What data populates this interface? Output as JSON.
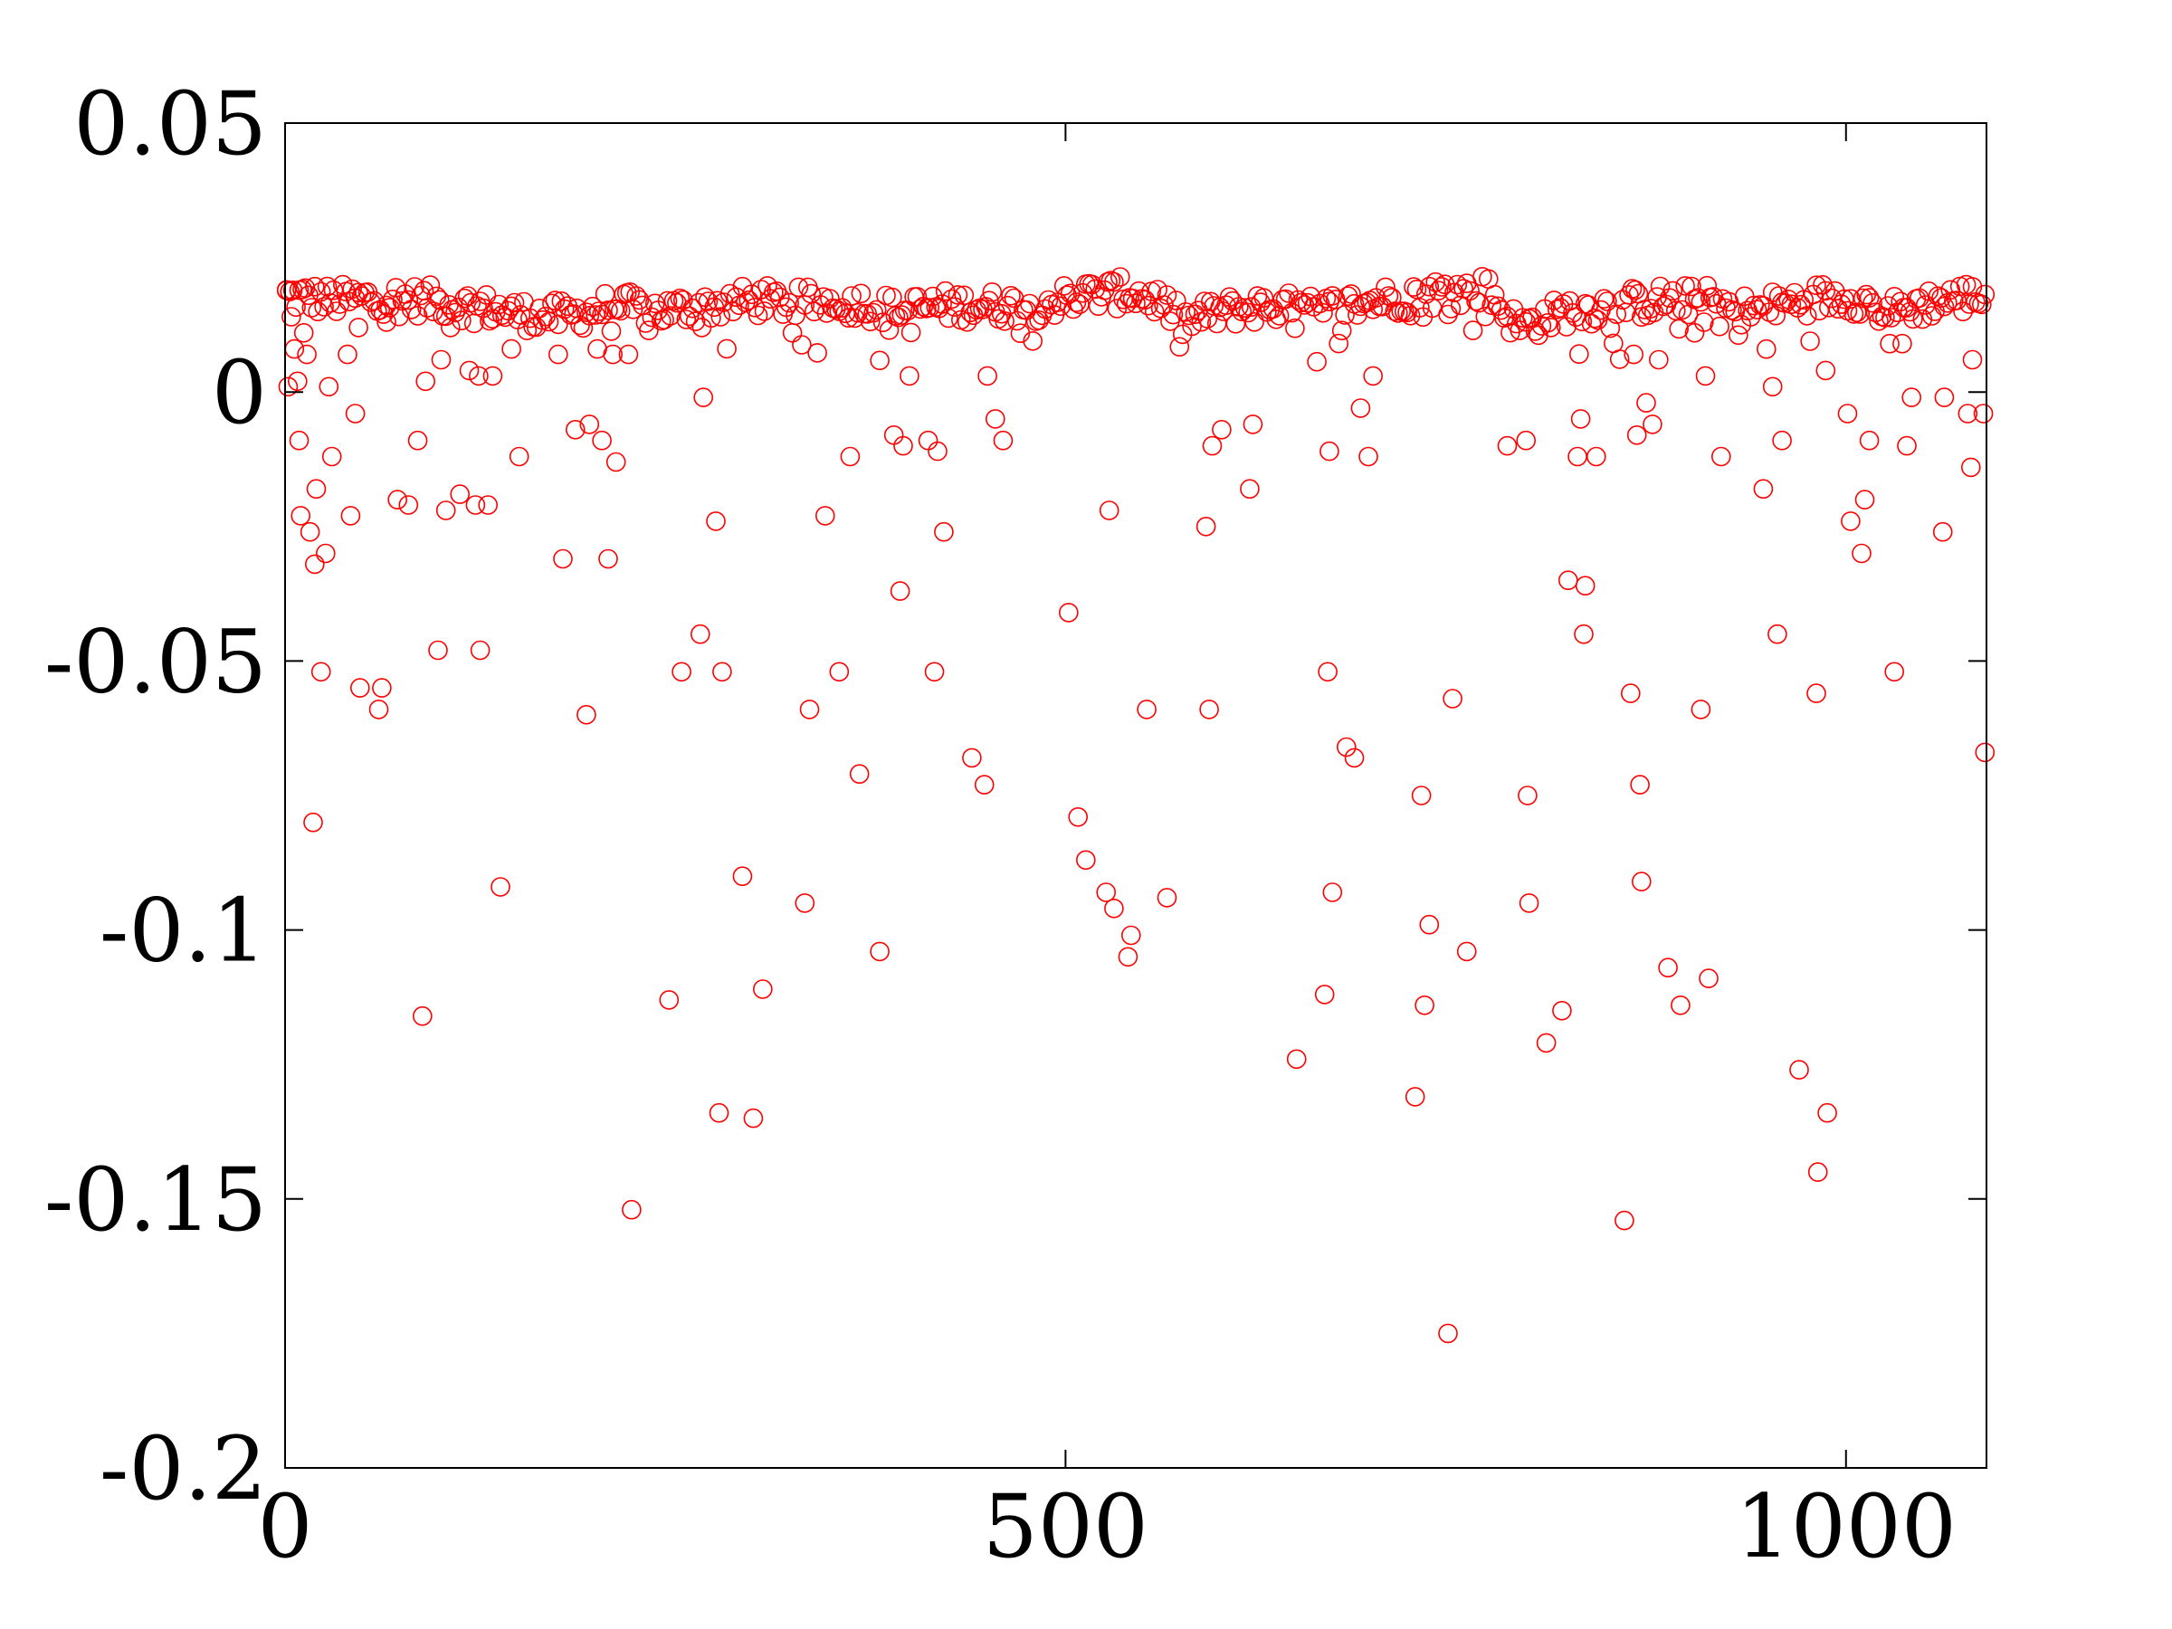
{
  "chart_data": {
    "type": "scatter",
    "title": "",
    "xlabel": "",
    "ylabel": "",
    "xlim": [
      0,
      1090
    ],
    "ylim": [
      -0.2,
      0.05
    ],
    "x_ticks": [
      {
        "value": 0,
        "label": "0"
      },
      {
        "value": 500,
        "label": "500"
      },
      {
        "value": 1000,
        "label": "1000"
      }
    ],
    "y_ticks": [
      {
        "value": 0.05,
        "label": "0.05"
      },
      {
        "value": 0,
        "label": "0"
      },
      {
        "value": -0.05,
        "label": "-0.05"
      },
      {
        "value": -0.1,
        "label": "-0.1"
      },
      {
        "value": -0.15,
        "label": "-0.15"
      },
      {
        "value": -0.2,
        "label": "-0.2"
      }
    ],
    "grid": false,
    "legend": "none",
    "marker": "open-circle",
    "color": "#ff0000",
    "series": [
      {
        "band": {
          "x_start": 1,
          "x_end": 1089,
          "step": 2,
          "anchors": [
            [
              0,
              0.018
            ],
            [
              30,
              0.017
            ],
            [
              60,
              0.0175
            ],
            [
              90,
              0.017
            ],
            [
              120,
              0.016
            ],
            [
              150,
              0.0145
            ],
            [
              180,
              0.014
            ],
            [
              210,
              0.016
            ],
            [
              240,
              0.015
            ],
            [
              270,
              0.016
            ],
            [
              300,
              0.017
            ],
            [
              330,
              0.0165
            ],
            [
              360,
              0.017
            ],
            [
              390,
              0.015
            ],
            [
              420,
              0.016
            ],
            [
              450,
              0.016
            ],
            [
              480,
              0.016
            ],
            [
              510,
              0.018
            ],
            [
              540,
              0.0185
            ],
            [
              560,
              0.017
            ],
            [
              575,
              0.013
            ],
            [
              600,
              0.015
            ],
            [
              630,
              0.016
            ],
            [
              660,
              0.015
            ],
            [
              700,
              0.017
            ],
            [
              740,
              0.0185
            ],
            [
              770,
              0.019
            ],
            [
              790,
              0.012
            ],
            [
              820,
              0.015
            ],
            [
              850,
              0.016
            ],
            [
              880,
              0.017
            ],
            [
              910,
              0.017
            ],
            [
              940,
              0.015
            ],
            [
              970,
              0.017
            ],
            [
              1000,
              0.018
            ],
            [
              1030,
              0.015
            ],
            [
              1060,
              0.017
            ],
            [
              1090,
              0.018
            ]
          ]
        },
        "points": [
          [
            1,
            0.019
          ],
          [
            2,
            0.001
          ],
          [
            4,
            0.014
          ],
          [
            6,
            0.008
          ],
          [
            8,
            0.002
          ],
          [
            9,
            -0.009
          ],
          [
            10,
            -0.023
          ],
          [
            12,
            0.011
          ],
          [
            14,
            0.007
          ],
          [
            16,
            -0.026
          ],
          [
            18,
            -0.08
          ],
          [
            19,
            -0.032
          ],
          [
            20,
            -0.018
          ],
          [
            23,
            -0.052
          ],
          [
            26,
            -0.03
          ],
          [
            28,
            0.001
          ],
          [
            30,
            -0.012
          ],
          [
            40,
            0.007
          ],
          [
            42,
            -0.023
          ],
          [
            45,
            -0.004
          ],
          [
            47,
            0.012
          ],
          [
            48,
            -0.055
          ],
          [
            60,
            -0.059
          ],
          [
            62,
            -0.055
          ],
          [
            65,
            0.013
          ],
          [
            72,
            -0.02
          ],
          [
            79,
            -0.021
          ],
          [
            85,
            -0.009
          ],
          [
            88,
            -0.116
          ],
          [
            90,
            0.002
          ],
          [
            98,
            -0.048
          ],
          [
            100,
            0.006
          ],
          [
            103,
            -0.022
          ],
          [
            106,
            0.012
          ],
          [
            112,
            -0.019
          ],
          [
            118,
            0.004
          ],
          [
            122,
            -0.021
          ],
          [
            124,
            0.003
          ],
          [
            125,
            -0.048
          ],
          [
            130,
            -0.021
          ],
          [
            133,
            0.003
          ],
          [
            138,
            -0.092
          ],
          [
            145,
            0.008
          ],
          [
            150,
            -0.012
          ],
          [
            175,
            0.007
          ],
          [
            178,
            -0.031
          ],
          [
            186,
            -0.007
          ],
          [
            193,
            -0.06
          ],
          [
            195,
            -0.006
          ],
          [
            200,
            0.008
          ],
          [
            203,
            -0.009
          ],
          [
            207,
            -0.031
          ],
          [
            210,
            0.007
          ],
          [
            212,
            -0.013
          ],
          [
            220,
            0.007
          ],
          [
            222,
            -0.152
          ],
          [
            246,
            -0.113
          ],
          [
            254,
            -0.052
          ],
          [
            266,
            -0.045
          ],
          [
            268,
            -0.001
          ],
          [
            276,
            -0.024
          ],
          [
            278,
            -0.134
          ],
          [
            280,
            -0.052
          ],
          [
            293,
            -0.09
          ],
          [
            300,
            -0.135
          ],
          [
            306,
            -0.111
          ],
          [
            333,
            -0.095
          ],
          [
            336,
            -0.059
          ],
          [
            346,
            -0.023
          ],
          [
            355,
            -0.052
          ],
          [
            362,
            -0.012
          ],
          [
            368,
            -0.071
          ],
          [
            381,
            -0.104
          ],
          [
            390,
            -0.008
          ],
          [
            394,
            -0.037
          ],
          [
            396,
            -0.01
          ],
          [
            400,
            0.003
          ],
          [
            412,
            -0.009
          ],
          [
            416,
            -0.052
          ],
          [
            418,
            -0.011
          ],
          [
            422,
            -0.026
          ],
          [
            440,
            -0.068
          ],
          [
            448,
            -0.073
          ],
          [
            450,
            0.003
          ],
          [
            455,
            -0.005
          ],
          [
            460,
            -0.009
          ],
          [
            502,
            -0.041
          ],
          [
            508,
            -0.079
          ],
          [
            513,
            -0.087
          ],
          [
            526,
            -0.093
          ],
          [
            528,
            -0.022
          ],
          [
            531,
            -0.096
          ],
          [
            540,
            -0.105
          ],
          [
            542,
            -0.101
          ],
          [
            552,
            -0.059
          ],
          [
            565,
            -0.094
          ],
          [
            590,
            -0.025
          ],
          [
            592,
            -0.059
          ],
          [
            594,
            -0.01
          ],
          [
            600,
            -0.007
          ],
          [
            618,
            -0.018
          ],
          [
            620,
            -0.006
          ],
          [
            648,
            -0.124
          ],
          [
            666,
            -0.112
          ],
          [
            668,
            -0.052
          ],
          [
            669,
            -0.011
          ],
          [
            671,
            -0.093
          ],
          [
            680,
            -0.066
          ],
          [
            685,
            -0.068
          ],
          [
            689,
            -0.003
          ],
          [
            694,
            -0.012
          ],
          [
            697,
            0.003
          ],
          [
            724,
            -0.131
          ],
          [
            728,
            -0.075
          ],
          [
            730,
            -0.114
          ],
          [
            733,
            -0.099
          ],
          [
            745,
            -0.175
          ],
          [
            748,
            -0.057
          ],
          [
            757,
            -0.104
          ],
          [
            783,
            -0.01
          ],
          [
            795,
            -0.009
          ],
          [
            796,
            -0.075
          ],
          [
            797,
            -0.095
          ],
          [
            808,
            -0.121
          ],
          [
            818,
            -0.115
          ],
          [
            822,
            -0.035
          ],
          [
            828,
            -0.012
          ],
          [
            830,
            -0.005
          ],
          [
            832,
            -0.045
          ],
          [
            833,
            -0.036
          ],
          [
            840,
            -0.012
          ],
          [
            858,
            -0.154
          ],
          [
            862,
            -0.056
          ],
          [
            864,
            0.007
          ],
          [
            866,
            -0.008
          ],
          [
            868,
            -0.073
          ],
          [
            869,
            -0.091
          ],
          [
            872,
            -0.002
          ],
          [
            876,
            -0.006
          ],
          [
            880,
            0.006
          ],
          [
            886,
            -0.107
          ],
          [
            894,
            -0.114
          ],
          [
            903,
            0.011
          ],
          [
            907,
            -0.059
          ],
          [
            910,
            0.003
          ],
          [
            912,
            -0.109
          ],
          [
            920,
            -0.012
          ],
          [
            947,
            -0.018
          ],
          [
            953,
            0.001
          ],
          [
            956,
            -0.045
          ],
          [
            959,
            -0.009
          ],
          [
            970,
            -0.126
          ],
          [
            981,
            -0.056
          ],
          [
            982,
            -0.145
          ],
          [
            987,
            0.004
          ],
          [
            988,
            -0.134
          ],
          [
            1001,
            -0.004
          ],
          [
            1003,
            -0.024
          ],
          [
            1010,
            -0.03
          ],
          [
            1012,
            -0.02
          ],
          [
            1015,
            -0.009
          ],
          [
            1028,
            0.009
          ],
          [
            1031,
            -0.052
          ],
          [
            1036,
            0.009
          ],
          [
            1039,
            -0.01
          ],
          [
            1042,
            -0.001
          ],
          [
            1062,
            -0.026
          ],
          [
            1063,
            -0.001
          ],
          [
            1078,
            -0.004
          ],
          [
            1080,
            -0.014
          ],
          [
            1081,
            0.006
          ],
          [
            1088,
            -0.004
          ],
          [
            1089,
            -0.067
          ]
        ]
      }
    ]
  }
}
